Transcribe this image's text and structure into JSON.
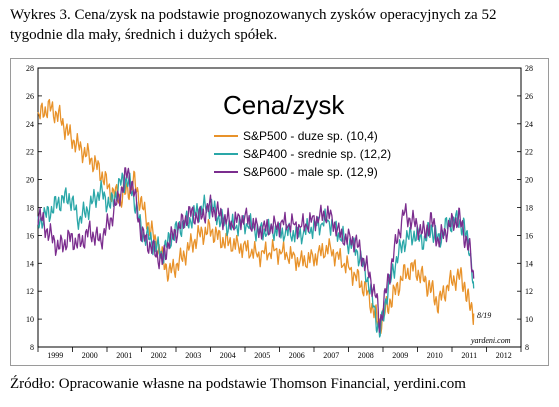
{
  "caption": "Wykres 3. Cena/zysk na podstawie prognozowanych zysków operacyjnych za 52 tygodnie dla mały, średnich i dużych spółek.",
  "source": "Źródło: Opracowanie własne na podstawie Thomson Financial, yerdini.com",
  "chart_data": {
    "type": "line",
    "title": "Cena/zysk",
    "xlabel": "",
    "ylabel": "",
    "categories": [
      "1999",
      "2000",
      "2001",
      "2002",
      "2003",
      "2004",
      "2005",
      "2006",
      "2007",
      "2008",
      "2009",
      "2010",
      "2011",
      "2012"
    ],
    "xlim": [
      1999,
      2013
    ],
    "ylim": [
      8,
      28
    ],
    "yticks": [
      8,
      10,
      12,
      14,
      16,
      18,
      20,
      22,
      24,
      26,
      28
    ],
    "grid": false,
    "legend": "top-center",
    "end_label": "8/19",
    "watermark": "yardeni.com",
    "series": [
      {
        "name": "S&P500 - duze sp. (10,4)",
        "color": "#e8922a",
        "x": [
          1999.0,
          1999.3,
          1999.6,
          1999.9,
          2000.2,
          2000.5,
          2000.8,
          2001.1,
          2001.4,
          2001.6,
          2001.8,
          2002.0,
          2002.3,
          2002.6,
          2002.8,
          2003.1,
          2003.4,
          2003.7,
          2004.0,
          2004.3,
          2004.6,
          2005.0,
          2005.4,
          2005.8,
          2006.2,
          2006.6,
          2007.0,
          2007.4,
          2007.8,
          2008.2,
          2008.5,
          2008.8,
          2008.9,
          2009.1,
          2009.3,
          2009.6,
          2009.9,
          2010.2,
          2010.4,
          2010.6,
          2010.9,
          2011.2,
          2011.35,
          2011.5,
          2011.63
        ],
        "y": [
          24.5,
          25.2,
          24.6,
          23.2,
          22.3,
          21.6,
          20.6,
          19.2,
          18.7,
          19.3,
          19.8,
          18.2,
          16.2,
          14.4,
          13.3,
          14.1,
          15.2,
          16.1,
          16.4,
          15.7,
          15.4,
          15.1,
          14.6,
          14.9,
          14.7,
          14.1,
          14.4,
          15.1,
          14.2,
          13.1,
          12.1,
          10.2,
          9.6,
          10.8,
          11.7,
          13.2,
          13.7,
          12.8,
          12.1,
          11.1,
          12.5,
          13.1,
          12.6,
          11.0,
          10.4
        ]
      },
      {
        "name": "S&P400 - srednie sp. (12,2)",
        "color": "#2aa7a8",
        "x": [
          1999.0,
          1999.3,
          1999.6,
          1999.9,
          2000.2,
          2000.5,
          2000.8,
          2001.1,
          2001.4,
          2001.6,
          2001.8,
          2002.0,
          2002.3,
          2002.6,
          2002.8,
          2003.1,
          2003.4,
          2003.7,
          2004.0,
          2004.3,
          2004.6,
          2005.0,
          2005.4,
          2005.8,
          2006.2,
          2006.6,
          2007.0,
          2007.4,
          2007.8,
          2008.2,
          2008.5,
          2008.8,
          2008.9,
          2009.1,
          2009.3,
          2009.6,
          2009.9,
          2010.2,
          2010.4,
          2010.6,
          2010.9,
          2011.2,
          2011.35,
          2011.5,
          2011.63
        ],
        "y": [
          17.0,
          17.6,
          18.4,
          18.8,
          17.1,
          18.1,
          19.2,
          18.1,
          19.8,
          20.0,
          18.6,
          16.2,
          15.6,
          14.6,
          15.6,
          16.6,
          17.1,
          17.9,
          18.1,
          17.1,
          16.6,
          16.9,
          16.3,
          16.4,
          16.2,
          16.1,
          16.6,
          17.1,
          15.9,
          15.1,
          13.4,
          10.2,
          8.8,
          11.6,
          13.6,
          15.6,
          16.1,
          15.6,
          16.6,
          15.6,
          16.9,
          17.1,
          16.4,
          15.4,
          12.2
        ]
      },
      {
        "name": "S&P600 - male sp. (12,9)",
        "color": "#7b2d8e",
        "x": [
          1999.0,
          1999.3,
          1999.6,
          1999.9,
          2000.2,
          2000.5,
          2000.8,
          2001.1,
          2001.4,
          2001.6,
          2001.8,
          2002.0,
          2002.3,
          2002.6,
          2002.8,
          2003.1,
          2003.4,
          2003.7,
          2004.0,
          2004.3,
          2004.6,
          2005.0,
          2005.4,
          2005.8,
          2006.2,
          2006.6,
          2007.0,
          2007.4,
          2007.8,
          2008.2,
          2008.5,
          2008.8,
          2008.9,
          2009.1,
          2009.3,
          2009.6,
          2009.9,
          2010.2,
          2010.4,
          2010.6,
          2010.9,
          2011.2,
          2011.35,
          2011.5,
          2011.63
        ],
        "y": [
          17.6,
          16.2,
          15.1,
          15.8,
          15.4,
          16.3,
          15.6,
          17.1,
          19.1,
          20.6,
          18.9,
          16.1,
          15.1,
          14.1,
          15.6,
          16.6,
          17.6,
          17.3,
          18.1,
          17.4,
          16.9,
          17.3,
          16.4,
          16.6,
          16.9,
          16.6,
          17.1,
          17.6,
          15.9,
          15.6,
          13.9,
          11.6,
          9.6,
          12.1,
          14.6,
          17.6,
          16.9,
          16.1,
          17.1,
          15.6,
          16.6,
          17.3,
          16.1,
          15.1,
          12.9
        ]
      }
    ]
  }
}
